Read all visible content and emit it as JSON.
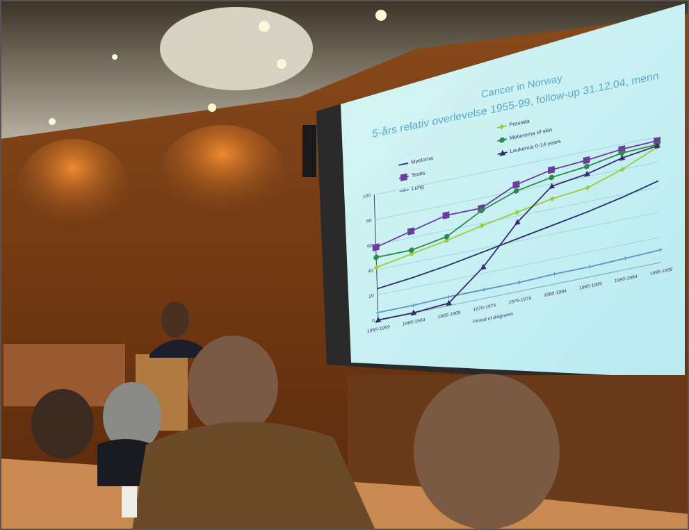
{
  "chart_data": {
    "type": "line",
    "title": "Cancer in Norway",
    "subtitle": "5-års relativ overlevelse 1955-99, follow-up 31.12.04, menn",
    "x_label": "Period of diagnosis",
    "categories": [
      "1955-1959",
      "1960-1964",
      "1965-1969",
      "1970-1974",
      "1975-1979",
      "1980-1984",
      "1985-1989",
      "1990-1994",
      "1995-1999"
    ],
    "series": [
      {
        "name": "Myeloma",
        "color": "#2a2f6a",
        "marker": "none",
        "values": [
          25,
          28,
          32,
          37,
          42,
          47,
          52,
          58,
          65
        ]
      },
      {
        "name": "Testis",
        "color": "#6a3d9a",
        "marker": "square",
        "values": [
          58,
          65,
          72,
          72,
          85,
          91,
          93,
          96,
          97
        ]
      },
      {
        "name": "Lung",
        "color": "#5f97c4",
        "marker": "plus",
        "values": [
          6,
          6,
          7,
          7,
          7,
          8,
          8,
          9,
          10
        ]
      },
      {
        "name": "Prostata",
        "color": "#9ccc3a",
        "marker": "diamond",
        "values": [
          42,
          47,
          52,
          58,
          63,
          68,
          71,
          80,
          92
        ]
      },
      {
        "name": "Melanoma of skin",
        "color": "#2e8b4e",
        "marker": "circle",
        "values": [
          50,
          50,
          55,
          70,
          80,
          85,
          88,
          93,
          94
        ]
      },
      {
        "name": "Leukemia 0-14 years",
        "color": "#3b2a6e",
        "marker": "triangle",
        "values": [
          0,
          0,
          2,
          25,
          55,
          78,
          82,
          89,
          93
        ]
      }
    ],
    "ylim": [
      0,
      100
    ],
    "yticks": [
      0,
      20,
      40,
      60,
      80,
      100
    ],
    "grid": true,
    "legend": "top"
  }
}
